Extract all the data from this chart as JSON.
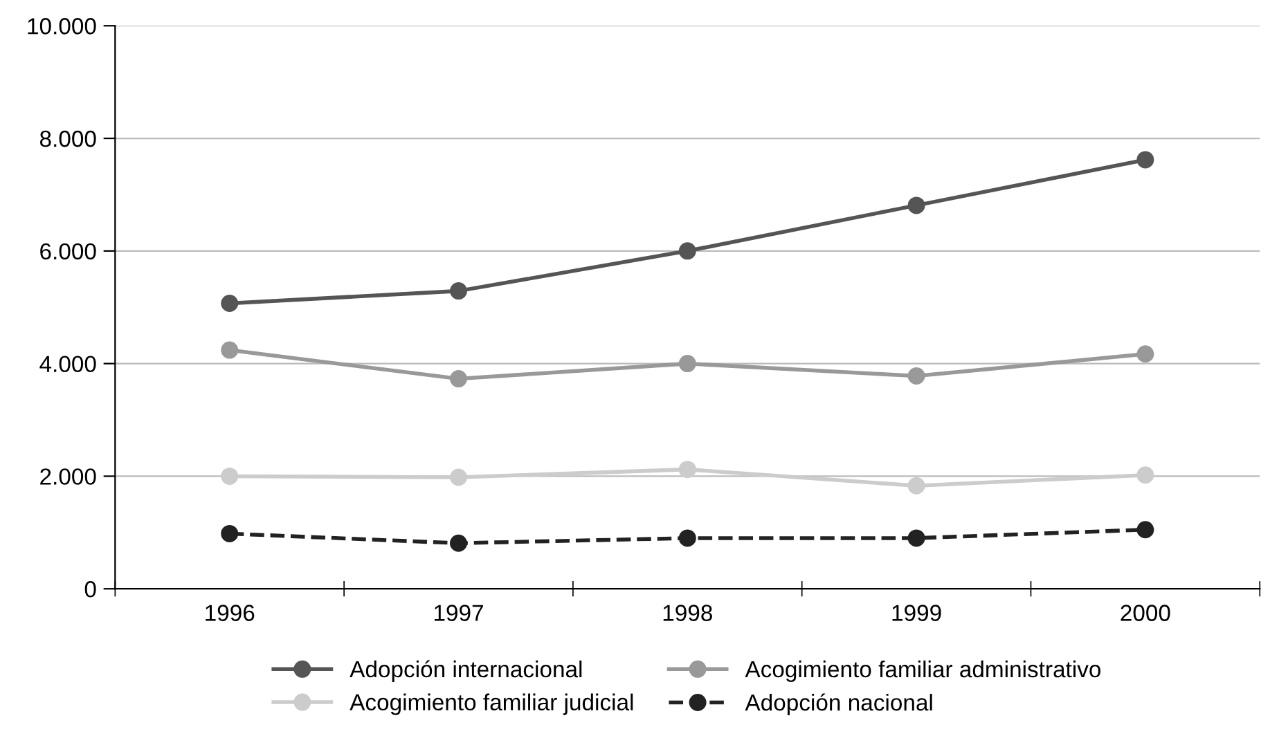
{
  "chart_data": {
    "type": "line",
    "categories": [
      "1996",
      "1997",
      "1998",
      "1999",
      "2000"
    ],
    "series": [
      {
        "name": "Adopción internacional",
        "color": "#555555",
        "values": [
          5070,
          5290,
          6000,
          6810,
          7620
        ]
      },
      {
        "name": "Acogimiento familiar administrativo",
        "color": "#999999",
        "values": [
          4240,
          3730,
          4000,
          3780,
          4170
        ]
      },
      {
        "name": "Acogimiento familiar judicial",
        "color": "#cccccc",
        "values": [
          2000,
          1980,
          2120,
          1830,
          2020
        ]
      },
      {
        "name": "Adopción nacional",
        "color": "#222222",
        "values": [
          980,
          810,
          900,
          900,
          1050
        ],
        "line_style": "dashed"
      }
    ],
    "ylim": [
      0,
      10000
    ],
    "yticks": [
      {
        "value": 0,
        "label": "0"
      },
      {
        "value": 2000,
        "label": "2.000"
      },
      {
        "value": 4000,
        "label": "4.000"
      },
      {
        "value": 6000,
        "label": "6.000"
      },
      {
        "value": 8000,
        "label": "8.000"
      },
      {
        "value": 10000,
        "label": "10.000"
      }
    ],
    "grid": "y",
    "legend": "bottom",
    "marker": "circle",
    "line_style": "solid"
  }
}
